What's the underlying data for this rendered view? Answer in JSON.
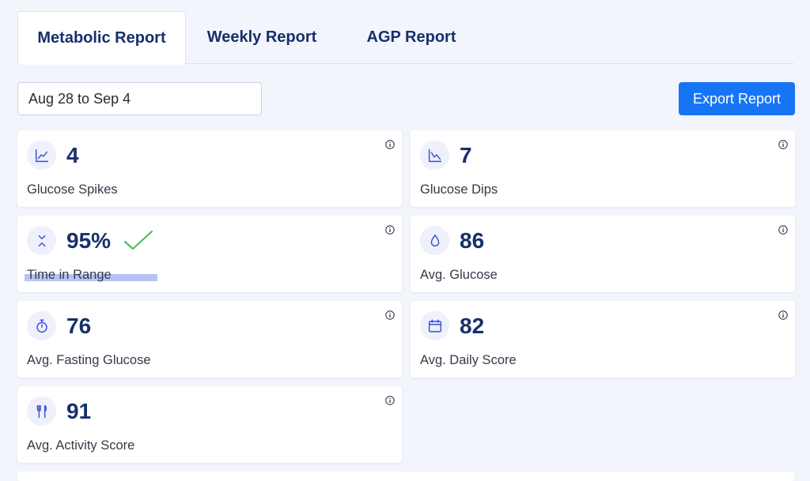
{
  "tabs": [
    {
      "label": "Metabolic Report",
      "active": true
    },
    {
      "label": "Weekly Report",
      "active": false
    },
    {
      "label": "AGP Report",
      "active": false
    }
  ],
  "date_range": {
    "value": "Aug 28 to Sep 4"
  },
  "export_button": {
    "label": "Export Report"
  },
  "colors": {
    "accent": "#1675f5",
    "value_text": "#17306b",
    "icon_color": "#3b50d6",
    "check_color": "#4cbe63",
    "highlight": "#b7c3f3"
  },
  "metrics": [
    {
      "value": "4",
      "label": "Glucose Spikes",
      "icon": "trend-up-chart-icon"
    },
    {
      "value": "7",
      "label": "Glucose Dips",
      "icon": "trend-down-chart-icon"
    },
    {
      "value": "95%",
      "label": "Time in Range",
      "icon": "range-arrows-icon",
      "status": "check-icon"
    },
    {
      "value": "86",
      "label": "Avg. Glucose",
      "icon": "droplet-icon"
    },
    {
      "value": "76",
      "label": "Avg. Fasting Glucose",
      "icon": "stopwatch-icon"
    },
    {
      "value": "82",
      "label": "Avg. Daily Score",
      "icon": "calendar-icon"
    },
    {
      "value": "91",
      "label": "Avg. Activity Score",
      "icon": "fork-knife-icon"
    }
  ]
}
